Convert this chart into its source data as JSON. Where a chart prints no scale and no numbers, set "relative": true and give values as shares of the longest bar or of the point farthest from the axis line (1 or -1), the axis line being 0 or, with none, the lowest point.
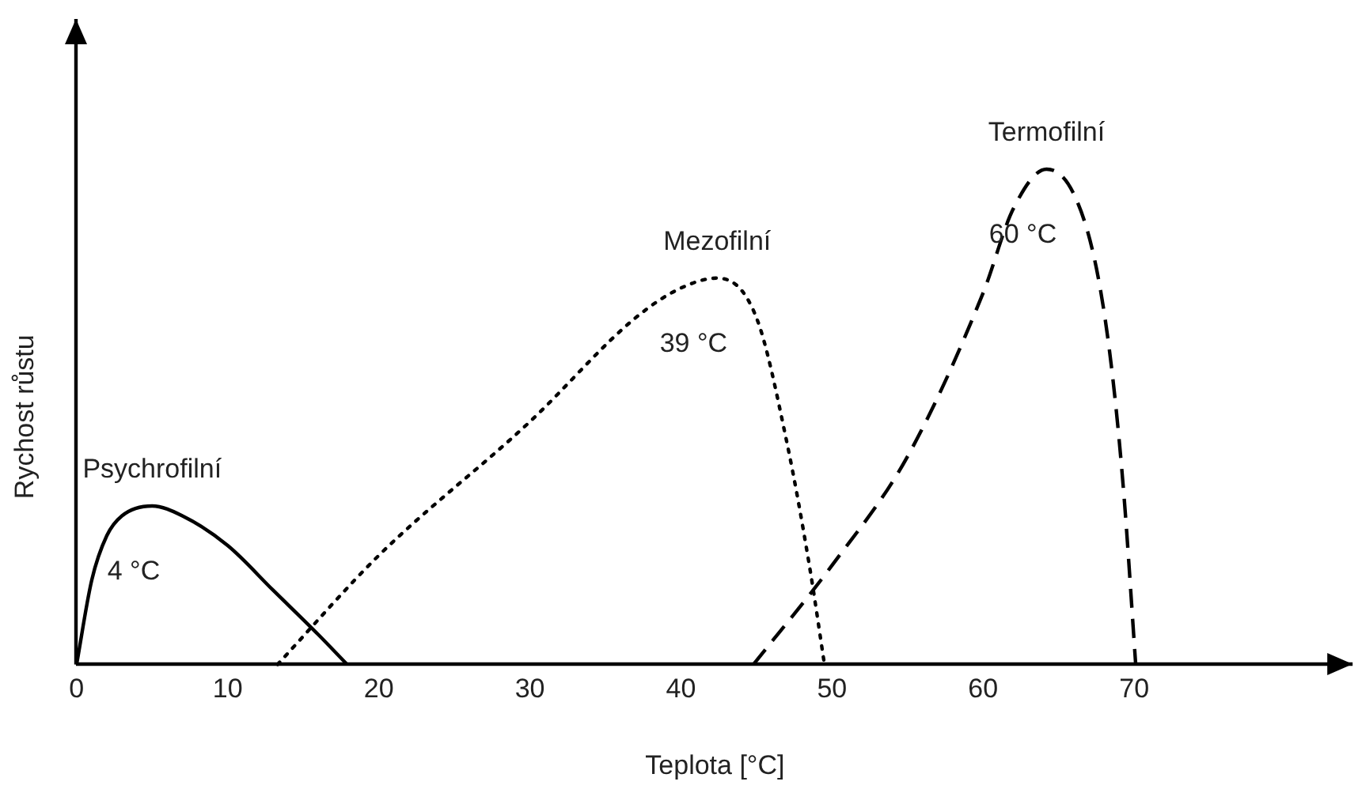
{
  "chart_data": {
    "type": "line",
    "relative": true,
    "xlabel": "Teplota [°C]",
    "ylabel": "Rychost růstu",
    "xlim": [
      0,
      84.5
    ],
    "xticks": [
      0,
      10,
      20,
      30,
      40,
      50,
      60,
      70
    ],
    "legend": false,
    "grid": false,
    "marker": "none",
    "series": [
      {
        "name": "Psychrofilní",
        "color": "#000000",
        "line_style": "solid",
        "x": [
          0,
          1,
          2,
          3,
          5,
          7,
          10,
          13,
          16,
          17.9
        ],
        "values": [
          0,
          0.17,
          0.26,
          0.3,
          0.32,
          0.3,
          0.24,
          0.15,
          0.06,
          0
        ]
      },
      {
        "name": "Mezofilní",
        "color": "#000000",
        "line_style": "dotted",
        "x": [
          13.3,
          20,
          30,
          37,
          40,
          42.4,
          45,
          47,
          48.5,
          49.5
        ],
        "values": [
          0,
          0.22,
          0.49,
          0.7,
          0.76,
          0.78,
          0.7,
          0.45,
          0.2,
          0
        ]
      },
      {
        "name": "Termofilní",
        "color": "#000000",
        "line_style": "dashed",
        "x": [
          44.8,
          50,
          55,
          60,
          62,
          64.2,
          66,
          67.5,
          68.5,
          69.3,
          70.1
        ],
        "values": [
          0,
          0.2,
          0.42,
          0.75,
          0.92,
          1,
          0.95,
          0.8,
          0.6,
          0.35,
          0
        ]
      }
    ],
    "annotations": [
      "4 °C",
      "39 °C",
      "60 °C"
    ]
  }
}
